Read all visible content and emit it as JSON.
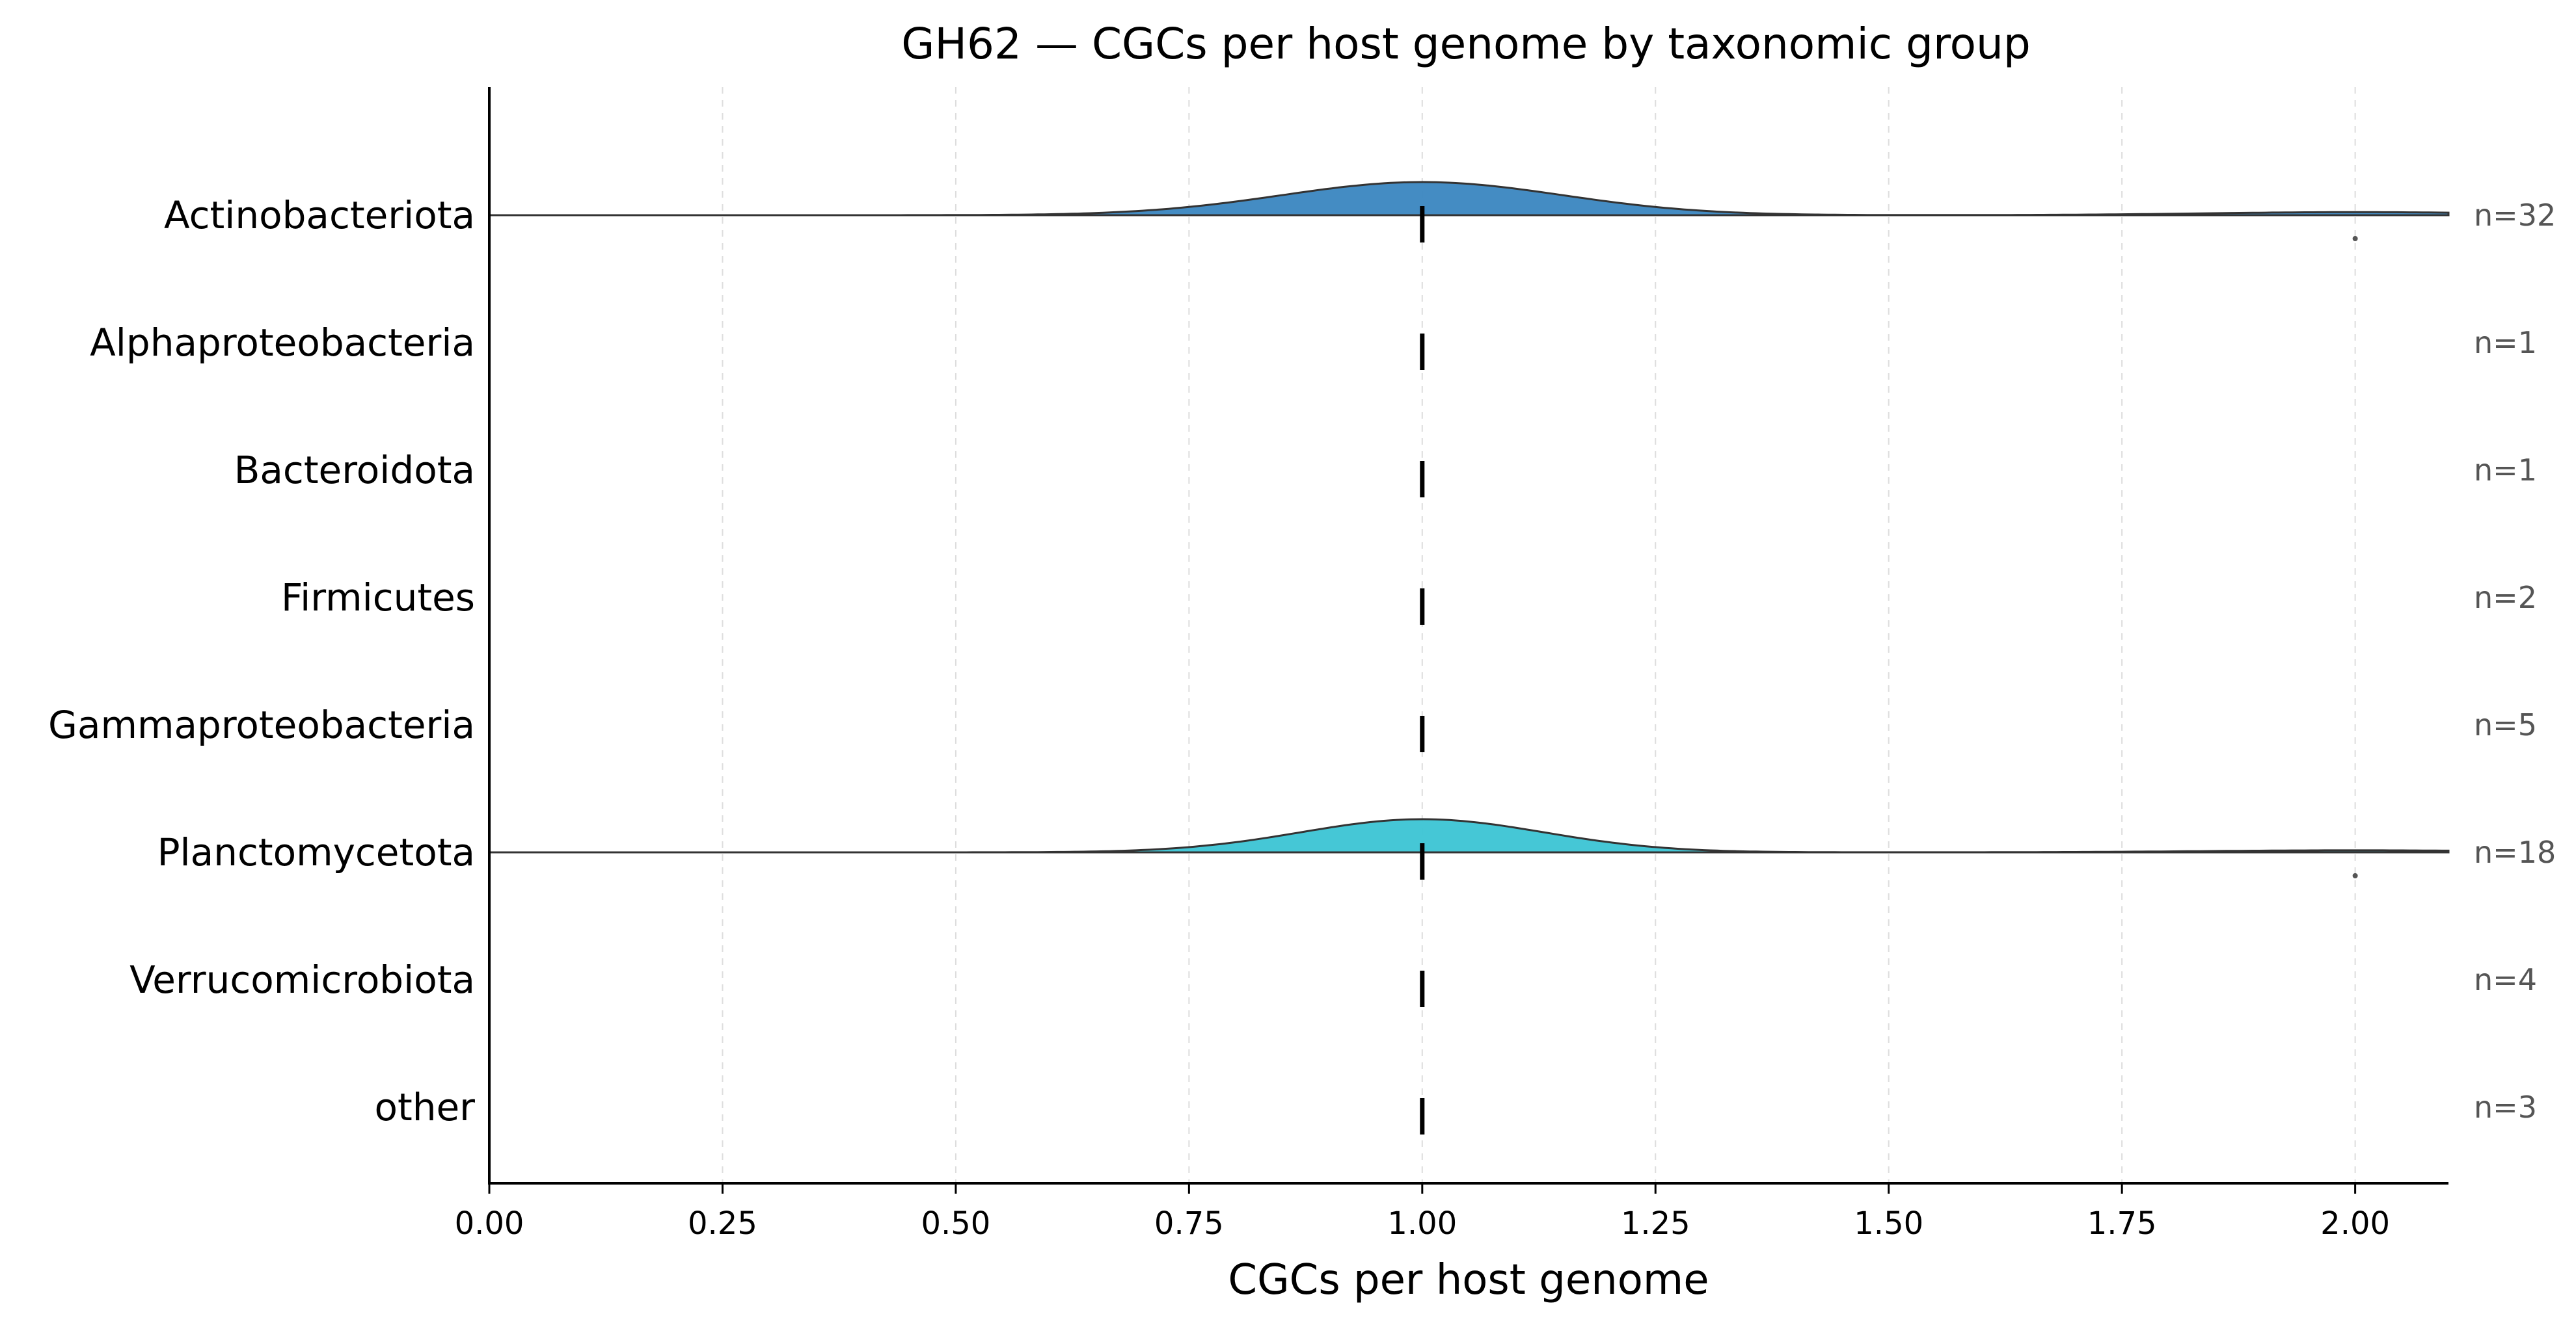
{
  "chart_data": {
    "type": "ridgeline",
    "title": "GH62 — CGCs per host genome by taxonomic group",
    "xlabel": "CGCs per host genome",
    "xlim": [
      0.0,
      2.1
    ],
    "xticks": [
      0.0,
      0.25,
      0.5,
      0.75,
      1.0,
      1.25,
      1.5,
      1.75,
      2.0
    ],
    "xtick_labels": [
      "0.00",
      "0.25",
      "0.50",
      "0.75",
      "1.00",
      "1.25",
      "1.50",
      "1.75",
      "2.00"
    ],
    "grid_x": true,
    "groups": [
      {
        "name": "Actinobacteriota",
        "n_label": "n=32",
        "median": 1.0,
        "color": "#3a86c0",
        "density": {
          "peak_center": 1.0,
          "peak_sd": 0.15,
          "peak_weight": 0.97,
          "secondary_center": 2.0,
          "secondary_weight": 0.03
        },
        "outliers": [
          2.0
        ]
      },
      {
        "name": "Alphaproteobacteria",
        "n_label": "n=1",
        "median": 1.0,
        "color": null,
        "density": null,
        "outliers": []
      },
      {
        "name": "Bacteroidota",
        "n_label": "n=1",
        "median": 1.0,
        "color": null,
        "density": null,
        "outliers": []
      },
      {
        "name": "Firmicutes",
        "n_label": "n=2",
        "median": 1.0,
        "color": null,
        "density": null,
        "outliers": []
      },
      {
        "name": "Gammaproteobacteria",
        "n_label": "n=5",
        "median": 1.0,
        "color": null,
        "density": null,
        "outliers": []
      },
      {
        "name": "Planctomycetota",
        "n_label": "n=18",
        "median": 1.0,
        "color": "#3bc4d4",
        "density": {
          "peak_center": 1.0,
          "peak_sd": 0.13,
          "peak_weight": 0.98,
          "secondary_center": 2.0,
          "secondary_weight": 0.02
        },
        "outliers": [
          2.0
        ]
      },
      {
        "name": "Verrucomicrobiota",
        "n_label": "n=4",
        "median": 1.0,
        "color": null,
        "density": null,
        "outliers": []
      },
      {
        "name": "other",
        "n_label": "n=3",
        "median": 1.0,
        "color": null,
        "density": null,
        "outliers": []
      }
    ]
  }
}
